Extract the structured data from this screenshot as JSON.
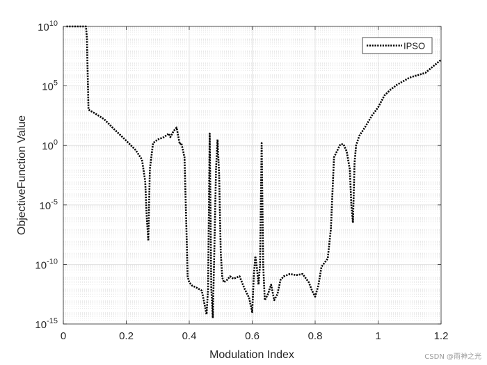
{
  "chart_data": {
    "type": "line",
    "xlabel": "Modulation Index",
    "ylabel": "ObjectiveFunction Value",
    "xlim": [
      0,
      1.2
    ],
    "ylim_log10": [
      -15,
      10
    ],
    "yscale": "log",
    "grid": true,
    "minor_grid": true,
    "legend_position": "top-right",
    "x_ticks": [
      "0",
      "0.2",
      "0.4",
      "0.6",
      "0.8",
      "1",
      "1.2"
    ],
    "y_ticks": [
      {
        "base": "10",
        "exp": "-15"
      },
      {
        "base": "10",
        "exp": "-10"
      },
      {
        "base": "10",
        "exp": "-5"
      },
      {
        "base": "10",
        "exp": "0"
      },
      {
        "base": "10",
        "exp": "5"
      },
      {
        "base": "10",
        "exp": "10"
      }
    ],
    "series": [
      {
        "name": "IPSO",
        "color": "#000000",
        "line_style": "dotted",
        "x": [
          0.01,
          0.065,
          0.072,
          0.075,
          0.08,
          0.1,
          0.13,
          0.16,
          0.2,
          0.23,
          0.25,
          0.26,
          0.265,
          0.27,
          0.275,
          0.285,
          0.3,
          0.32,
          0.335,
          0.34,
          0.35,
          0.36,
          0.37,
          0.375,
          0.385,
          0.39,
          0.395,
          0.4,
          0.41,
          0.42,
          0.44,
          0.455,
          0.46,
          0.465,
          0.47,
          0.475,
          0.48,
          0.485,
          0.49,
          0.495,
          0.5,
          0.505,
          0.51,
          0.52,
          0.53,
          0.54,
          0.56,
          0.575,
          0.59,
          0.6,
          0.605,
          0.61,
          0.615,
          0.62,
          0.625,
          0.63,
          0.635,
          0.64,
          0.65,
          0.66,
          0.67,
          0.68,
          0.69,
          0.7,
          0.72,
          0.74,
          0.76,
          0.78,
          0.79,
          0.8,
          0.81,
          0.82,
          0.84,
          0.85,
          0.86,
          0.88,
          0.89,
          0.9,
          0.91,
          0.915,
          0.92,
          0.925,
          0.93,
          0.94,
          0.96,
          0.98,
          1.0,
          1.02,
          1.04,
          1.06,
          1.1,
          1.15,
          1.2
        ],
        "y_log10": [
          10,
          10,
          10,
          9,
          3,
          2.7,
          2.2,
          1.4,
          0.4,
          -0.4,
          -1.2,
          -3,
          -6,
          -8,
          -2,
          0.2,
          0.5,
          0.7,
          1,
          0.7,
          1.2,
          1.5,
          0.1,
          0.2,
          -1,
          -6,
          -11,
          -11.5,
          -11.8,
          -11.9,
          -12.2,
          -14.2,
          -12,
          1,
          -12,
          -14.5,
          -8.5,
          -2,
          0.5,
          -2.5,
          -9,
          -11.1,
          -11.5,
          -11.3,
          -11,
          -11.2,
          -11,
          -12,
          -12.8,
          -14,
          -11,
          -9.3,
          -10.3,
          -11.7,
          -10,
          0.2,
          -10,
          -13,
          -12.5,
          -11.7,
          -13,
          -12.5,
          -11.3,
          -11,
          -10.8,
          -10.9,
          -10.8,
          -11.5,
          -12.2,
          -12.7,
          -11.8,
          -10.2,
          -9.5,
          -7,
          -1,
          0.1,
          0.1,
          -0.5,
          -2,
          -5,
          -6.5,
          -1.5,
          0,
          0.8,
          1.6,
          2.5,
          3.2,
          4.2,
          4.7,
          5.1,
          5.7,
          6.1,
          7.2
        ]
      }
    ]
  },
  "watermark": "CSDN @雨神之光"
}
